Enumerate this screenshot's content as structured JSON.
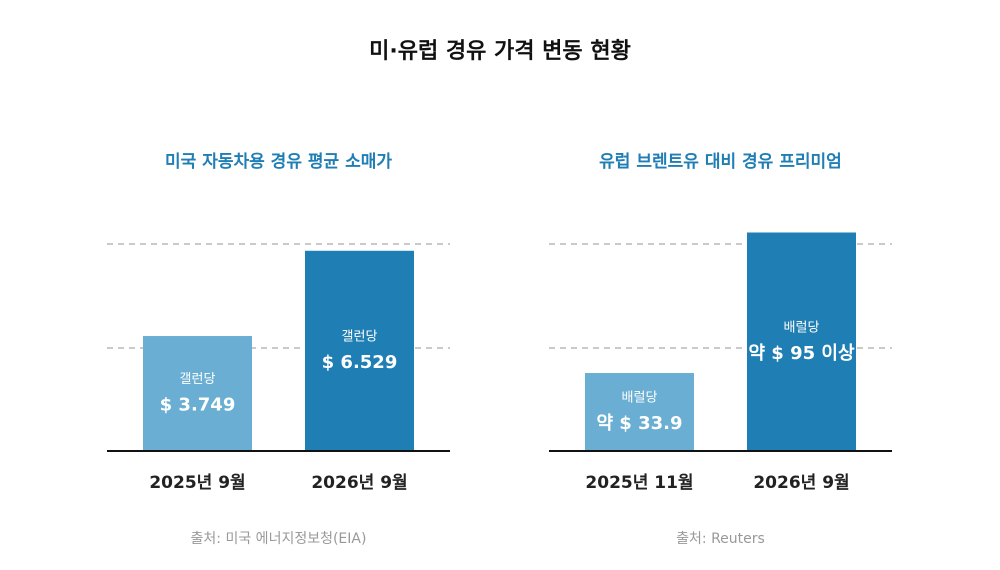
{
  "title": "미·유럽 경유 가격 변동 현황",
  "chart_data": [
    {
      "type": "bar",
      "title": "미국 자동차용 경유 평균 소매가",
      "categories": [
        "2025년 9월",
        "2026년 9월"
      ],
      "values": [
        3.749,
        6.529
      ],
      "value_labels": [
        "$ 3.749",
        "$ 6.529"
      ],
      "unit_labels": [
        "갤런당",
        "갤런당"
      ],
      "colors": [
        "#6aaed3",
        "#1f7eb3"
      ],
      "ylim": [
        0,
        7.5
      ],
      "source": "출처: 미국 에너지정보청(EIA)"
    },
    {
      "type": "bar",
      "title": "유럽 브렌트유 대비 경유 프리미엄",
      "categories": [
        "2025년 11월",
        "2026년 9월"
      ],
      "values": [
        33.9,
        95
      ],
      "value_labels": [
        "약 $ 33.9",
        "약 $ 95 이상"
      ],
      "unit_labels": [
        "배럴당",
        "배럴당"
      ],
      "colors": [
        "#6aaed3",
        "#1f7eb3"
      ],
      "ylim": [
        0,
        100
      ],
      "source": "출처: Reuters"
    }
  ]
}
